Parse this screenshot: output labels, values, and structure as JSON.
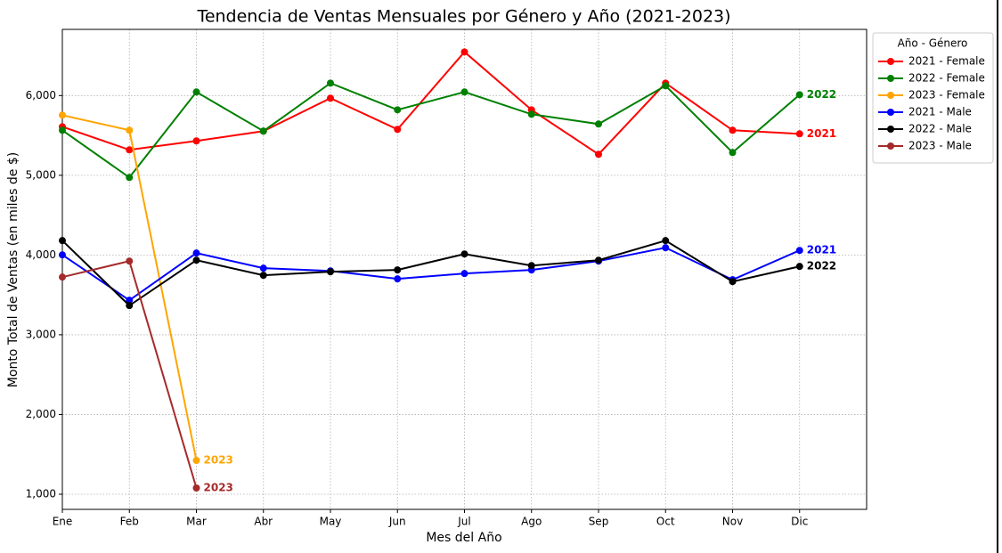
{
  "chart_data": {
    "type": "line",
    "title": "Tendencia de Ventas Mensuales por Género y Año (2021-2023)",
    "x_label": "Mes del Año",
    "y_label": "Monto Total de Ventas (en miles de $)",
    "legend_title": "Año - Género",
    "legend_position": "upper right outside",
    "grid": true,
    "categories": [
      "Ene",
      "Feb",
      "Mar",
      "Abr",
      "May",
      "Jun",
      "Jul",
      "Ago",
      "Sep",
      "Oct",
      "Nov",
      "Dic"
    ],
    "ylim": [
      810,
      6830
    ],
    "yticks": [
      {
        "value": 1000,
        "label": "1,000"
      },
      {
        "value": 2000,
        "label": "2,000"
      },
      {
        "value": 3000,
        "label": "3,000"
      },
      {
        "value": 4000,
        "label": "4,000"
      },
      {
        "value": 5000,
        "label": "5,000"
      },
      {
        "value": 6000,
        "label": "6,000"
      }
    ],
    "series": [
      {
        "name": "2021 - Female",
        "color": "#ff0000",
        "end_label": "2021",
        "values": [
          5609,
          5319,
          5431,
          5554,
          5967,
          5576,
          6547,
          5821,
          5263,
          6156,
          5565,
          5520
        ]
      },
      {
        "name": "2022 - Female",
        "color": "#008000",
        "end_label": "2022",
        "values": [
          5565,
          4973,
          6045,
          5554,
          6156,
          5821,
          6045,
          5766,
          5643,
          6123,
          5286,
          6011
        ]
      },
      {
        "name": "2023 - Female",
        "color": "#ffa500",
        "end_label": "2023",
        "values": [
          5754,
          5565,
          1424,
          null,
          null,
          null,
          null,
          null,
          null,
          null,
          null,
          null
        ]
      },
      {
        "name": "2021 - Male",
        "color": "#0000ff",
        "end_label": "2021",
        "values": [
          4002,
          3433,
          4025,
          3835,
          3801,
          3701,
          3768,
          3813,
          3924,
          4092,
          3690,
          4058
        ]
      },
      {
        "name": "2022 - Male",
        "color": "#000000",
        "end_label": "2022",
        "values": [
          4181,
          3366,
          3935,
          3746,
          3790,
          3813,
          4013,
          3868,
          3935,
          4181,
          3667,
          3857
        ]
      },
      {
        "name": "2023 - Male",
        "color": "#a52a2a",
        "end_label": "2023",
        "values": [
          3723,
          3924,
          1078,
          null,
          null,
          null,
          null,
          null,
          null,
          null,
          null,
          null
        ]
      }
    ]
  }
}
